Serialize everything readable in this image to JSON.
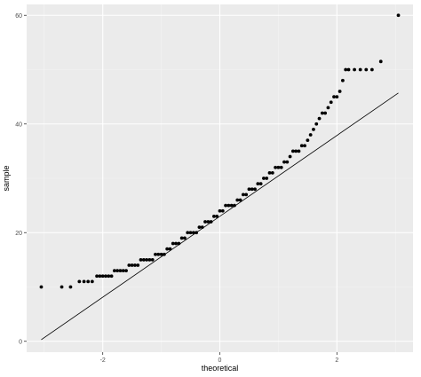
{
  "chart_data": {
    "type": "scatter",
    "xlabel": "theoretical",
    "ylabel": "sample",
    "xlim": [
      -3.3,
      3.3
    ],
    "ylim": [
      -2,
      62
    ],
    "x_ticks": [
      -2,
      0,
      2
    ],
    "y_ticks": [
      0,
      20,
      40,
      60
    ],
    "grid": true,
    "reference_line": {
      "x": [
        -3.05,
        3.05
      ],
      "y": [
        0.3,
        45.7
      ]
    },
    "points": {
      "x": [
        -3.05,
        -2.7,
        -2.55,
        -2.4,
        -2.32,
        -2.25,
        -2.18,
        -2.1,
        -2.05,
        -2.0,
        -1.95,
        -1.9,
        -1.85,
        -1.8,
        -1.75,
        -1.7,
        -1.65,
        -1.6,
        -1.55,
        -1.5,
        -1.45,
        -1.4,
        -1.35,
        -1.3,
        -1.25,
        -1.2,
        -1.15,
        -1.1,
        -1.05,
        -1.0,
        -0.95,
        -0.9,
        -0.85,
        -0.8,
        -0.75,
        -0.7,
        -0.65,
        -0.6,
        -0.55,
        -0.5,
        -0.45,
        -0.4,
        -0.35,
        -0.3,
        -0.25,
        -0.2,
        -0.15,
        -0.1,
        -0.05,
        0.0,
        0.05,
        0.1,
        0.15,
        0.2,
        0.25,
        0.3,
        0.35,
        0.4,
        0.45,
        0.5,
        0.55,
        0.6,
        0.65,
        0.7,
        0.75,
        0.8,
        0.85,
        0.9,
        0.95,
        1.0,
        1.05,
        1.1,
        1.15,
        1.2,
        1.25,
        1.3,
        1.35,
        1.4,
        1.45,
        1.5,
        1.55,
        1.6,
        1.65,
        1.7,
        1.75,
        1.8,
        1.85,
        1.9,
        1.95,
        2.0,
        2.05,
        2.1,
        2.15,
        2.2,
        2.3,
        2.4,
        2.5,
        2.6,
        2.75,
        3.05
      ],
      "y": [
        10,
        10,
        10,
        11,
        11,
        11,
        11,
        12,
        12,
        12,
        12,
        12,
        12,
        13,
        13,
        13,
        13,
        13,
        14,
        14,
        14,
        14,
        15,
        15,
        15,
        15,
        15,
        16,
        16,
        16,
        16,
        17,
        17,
        18,
        18,
        18,
        19,
        19,
        20,
        20,
        20,
        20,
        21,
        21,
        22,
        22,
        22,
        23,
        23,
        24,
        24,
        25,
        25,
        25,
        25,
        26,
        26,
        27,
        27,
        28,
        28,
        28,
        29,
        29,
        30,
        30,
        31,
        31,
        32,
        32,
        32,
        33,
        33,
        34,
        35,
        35,
        35,
        36,
        36,
        37,
        38,
        39,
        40,
        41,
        42,
        42,
        43,
        44,
        45,
        45,
        46,
        48,
        50,
        50,
        50,
        50,
        50,
        50,
        51.5,
        60
      ]
    }
  }
}
